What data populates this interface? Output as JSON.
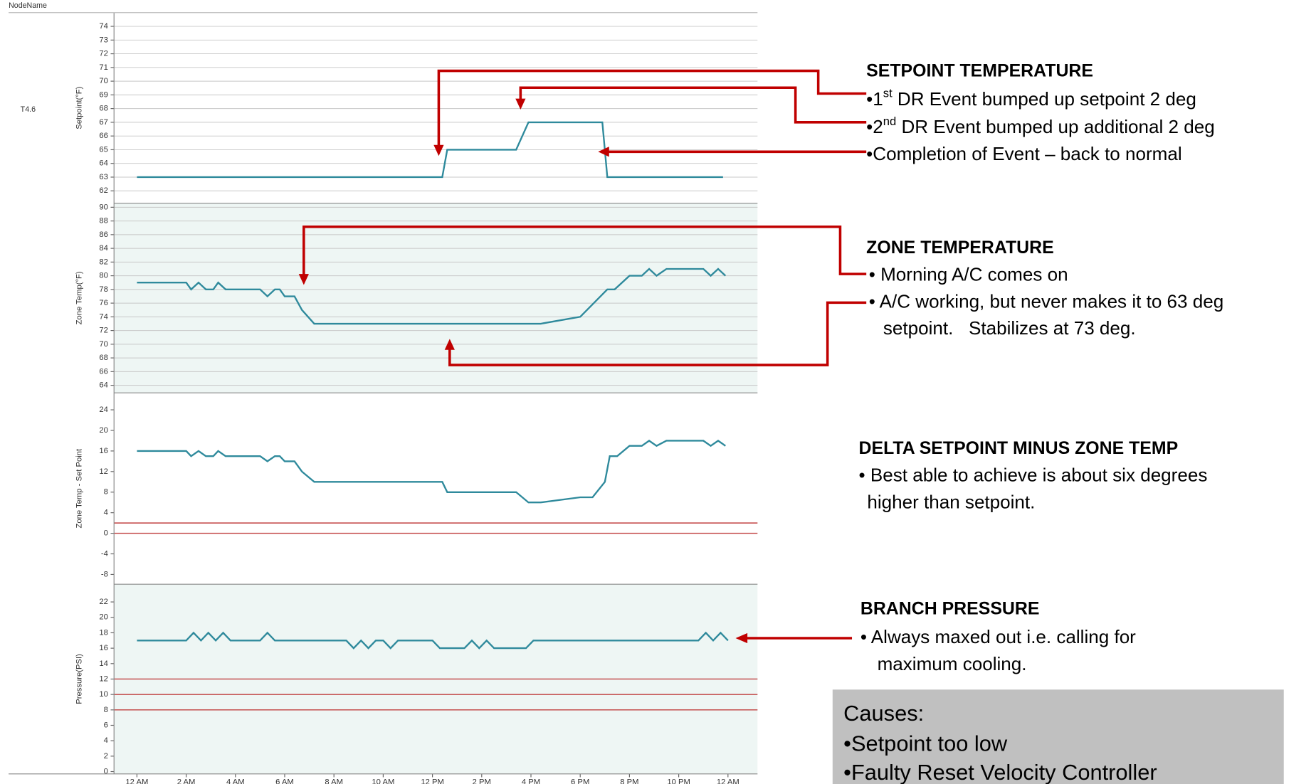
{
  "header": {
    "column": "NodeName",
    "node": "T4.6"
  },
  "chart_data": [
    {
      "type": "line",
      "ylabel": "Setpoint(°F)",
      "color": "#2f8a9c",
      "grid": true,
      "xlim": [
        -0.93,
        25.2
      ],
      "ylim": [
        61.1,
        75
      ],
      "yticks": [
        74,
        73,
        72,
        71,
        70,
        69,
        68,
        67,
        66,
        65,
        64,
        63,
        62
      ],
      "x": [
        0,
        12.4,
        12.6,
        15.4,
        15.9,
        18.9,
        19.1,
        23.8
      ],
      "values": [
        63,
        63,
        65,
        65,
        67,
        67,
        63,
        63
      ]
    },
    {
      "type": "line",
      "ylabel": "Zone Temp(°F)",
      "color": "#2f8a9c",
      "grid": true,
      "background": "#eef6f4",
      "xlim": [
        -0.93,
        25.2
      ],
      "ylim": [
        62.9,
        90.6
      ],
      "yticks": [
        90,
        88,
        86,
        84,
        82,
        80,
        78,
        76,
        74,
        72,
        70,
        68,
        66,
        64
      ],
      "x": [
        0,
        2.0,
        2.2,
        2.5,
        2.8,
        3.1,
        3.3,
        3.6,
        5.0,
        5.3,
        5.6,
        5.8,
        6.0,
        6.4,
        6.7,
        7.2,
        16.4,
        18.0,
        19.1,
        19.4,
        20.0,
        20.5,
        20.8,
        21.1,
        21.5,
        23.0,
        23.3,
        23.6,
        23.9
      ],
      "values": [
        79,
        79,
        78,
        79,
        78,
        78,
        79,
        78,
        78,
        77,
        78,
        78,
        77,
        77,
        75,
        73,
        73,
        74,
        78,
        78,
        80,
        80,
        81,
        80,
        81,
        81,
        80,
        81,
        80
      ]
    },
    {
      "type": "line",
      "ylabel": "Zone Temp - Set Point",
      "color": "#2f8a9c",
      "grid": false,
      "xlim": [
        -0.93,
        25.2
      ],
      "ylim": [
        -9.9,
        27.3
      ],
      "yticks": [
        24,
        20,
        16,
        12,
        8,
        4,
        0,
        -4,
        -8
      ],
      "reference_lines": [
        2,
        0
      ],
      "reference_color": "#c04040",
      "x": [
        0,
        2.0,
        2.2,
        2.5,
        2.8,
        3.1,
        3.3,
        3.6,
        5.0,
        5.3,
        5.6,
        5.8,
        6.0,
        6.4,
        6.7,
        7.2,
        12.4,
        12.6,
        15.4,
        15.9,
        16.4,
        18.0,
        18.5,
        19.0,
        19.2,
        19.5,
        20.0,
        20.5,
        20.8,
        21.1,
        21.5,
        23.0,
        23.3,
        23.6,
        23.9
      ],
      "values": [
        16,
        16,
        15,
        16,
        15,
        15,
        16,
        15,
        15,
        14,
        15,
        15,
        14,
        14,
        12,
        10,
        10,
        8,
        8,
        6,
        6,
        7,
        7,
        10,
        15,
        15,
        17,
        17,
        18,
        17,
        18,
        18,
        17,
        18,
        17
      ]
    },
    {
      "type": "line",
      "ylabel": "Pressure(PSI)",
      "color": "#2f8a9c",
      "grid": false,
      "background": "#eef6f4",
      "xlim": [
        -0.93,
        25.2
      ],
      "ylim": [
        -0.3,
        24.3
      ],
      "yticks": [
        22,
        20,
        18,
        16,
        14,
        12,
        10,
        8,
        6,
        4,
        2,
        0
      ],
      "reference_lines": [
        12,
        10,
        8
      ],
      "reference_color": "#c04040",
      "xticks": [
        {
          "value": 0,
          "label": "12 AM"
        },
        {
          "value": 2,
          "label": "2 AM"
        },
        {
          "value": 4,
          "label": "4 AM"
        },
        {
          "value": 6,
          "label": "6 AM"
        },
        {
          "value": 8,
          "label": "8 AM"
        },
        {
          "value": 10,
          "label": "10 AM"
        },
        {
          "value": 12,
          "label": "12 PM"
        },
        {
          "value": 14,
          "label": "2 PM"
        },
        {
          "value": 16,
          "label": "4 PM"
        },
        {
          "value": 18,
          "label": "6 PM"
        },
        {
          "value": 20,
          "label": "8 PM"
        },
        {
          "value": 22,
          "label": "10 PM"
        },
        {
          "value": 24,
          "label": "12 AM"
        }
      ],
      "x": [
        0,
        2.0,
        2.3,
        2.6,
        2.9,
        3.2,
        3.5,
        3.8,
        5.0,
        5.3,
        5.6,
        8.5,
        8.8,
        9.1,
        9.4,
        9.7,
        10.0,
        10.3,
        10.6,
        12.0,
        12.3,
        13.3,
        13.6,
        13.9,
        14.2,
        14.5,
        15.8,
        16.1,
        22.8,
        23.1,
        23.4,
        23.7,
        24.0
      ],
      "values": [
        17,
        17,
        18,
        17,
        18,
        17,
        18,
        17,
        17,
        18,
        17,
        17,
        16,
        17,
        16,
        17,
        17,
        16,
        17,
        17,
        16,
        16,
        17,
        16,
        17,
        16,
        16,
        17,
        17,
        18,
        17,
        18,
        17
      ]
    }
  ],
  "annotations": [
    {
      "heading": "SETPOINT TEMPERATURE",
      "items": [
        {
          "pre": "•1",
          "sup": "st",
          "text": " DR Event bumped up setpoint 2 deg"
        },
        {
          "pre": "•2",
          "sup": "nd",
          "text": " DR Event bumped up additional 2 deg"
        },
        "•Completion of Event – back to normal"
      ]
    },
    {
      "heading": "ZONE TEMPERATURE",
      "items": [
        "• Morning A/C comes on",
        "• A/C working, but never makes it to 63 deg",
        "setpoint.   Stabilizes at 73 deg."
      ]
    },
    {
      "heading": "DELTA SETPOINT MINUS ZONE TEMP",
      "items": [
        "• Best able to achieve is about six degrees",
        "higher than setpoint."
      ]
    },
    {
      "heading": "BRANCH PRESSURE",
      "items": [
        "• Always maxed out i.e. calling for",
        "maximum cooling."
      ]
    }
  ],
  "causes": {
    "heading": "Causes:",
    "items": [
      "•Setpoint too low",
      "•Faulty Reset Velocity Controller"
    ]
  }
}
